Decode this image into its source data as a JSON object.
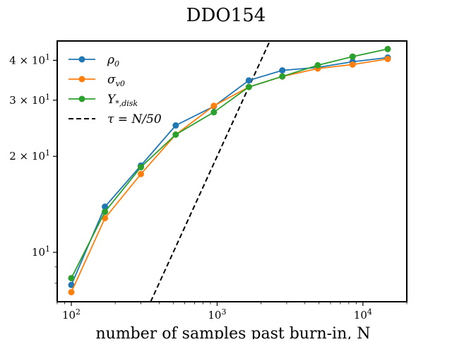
{
  "chart_data": {
    "type": "line",
    "title": "DDO154",
    "xlabel": "number of samples past burn-in, N",
    "ylabel": "",
    "xscale": "log",
    "yscale": "log",
    "xlim": [
      80,
      20000
    ],
    "ylim": [
      7,
      46
    ],
    "x_ticks": [
      {
        "value": 100,
        "base": "10",
        "exp": "2"
      },
      {
        "value": 1000,
        "base": "10",
        "exp": "3"
      },
      {
        "value": 10000,
        "base": "10",
        "exp": "4"
      }
    ],
    "y_ticks": [
      {
        "value": 10,
        "coef": "",
        "base": "10",
        "exp": "1"
      },
      {
        "value": 20,
        "coef": "2 × ",
        "base": "10",
        "exp": "1"
      },
      {
        "value": 30,
        "coef": "3 × ",
        "base": "10",
        "exp": "1"
      },
      {
        "value": 40,
        "coef": "4 × ",
        "base": "10",
        "exp": "1"
      }
    ],
    "x": [
      100,
      170,
      300,
      520,
      950,
      1650,
      2800,
      4900,
      8500,
      14800
    ],
    "series": [
      {
        "name": "ρ0",
        "color": "#1f77b4",
        "marker": "circle",
        "values": [
          7.9,
          13.9,
          18.7,
          25.0,
          28.7,
          34.6,
          37.2,
          38.0,
          39.6,
          40.8
        ]
      },
      {
        "name": "σv0",
        "color": "#ff7f0e",
        "marker": "circle",
        "values": [
          7.5,
          12.8,
          17.6,
          23.4,
          28.8,
          33.0,
          35.6,
          37.7,
          38.8,
          40.4
        ]
      },
      {
        "name": "Υ*,disk",
        "color": "#2ca02c",
        "marker": "circle",
        "values": [
          8.3,
          13.4,
          18.5,
          23.4,
          27.5,
          33.0,
          35.6,
          38.6,
          41.1,
          43.4
        ]
      }
    ],
    "reference_line": {
      "name": "τ = N/50",
      "color": "#000000",
      "style": "dashed",
      "divisor": 50
    },
    "legend": {
      "placement": "upper-left",
      "entries": [
        {
          "sym": "ρ",
          "sub": "0",
          "color": "#1f77b4",
          "style": "line-marker"
        },
        {
          "sym": "σ",
          "sub": "v0",
          "color": "#ff7f0e",
          "style": "line-marker"
        },
        {
          "sym": "Υ",
          "sub": "*,disk",
          "color": "#2ca02c",
          "style": "line-marker"
        },
        {
          "sym": "τ = N/50",
          "sub": "",
          "color": "#000000",
          "style": "dashed"
        }
      ]
    },
    "grid": false
  }
}
